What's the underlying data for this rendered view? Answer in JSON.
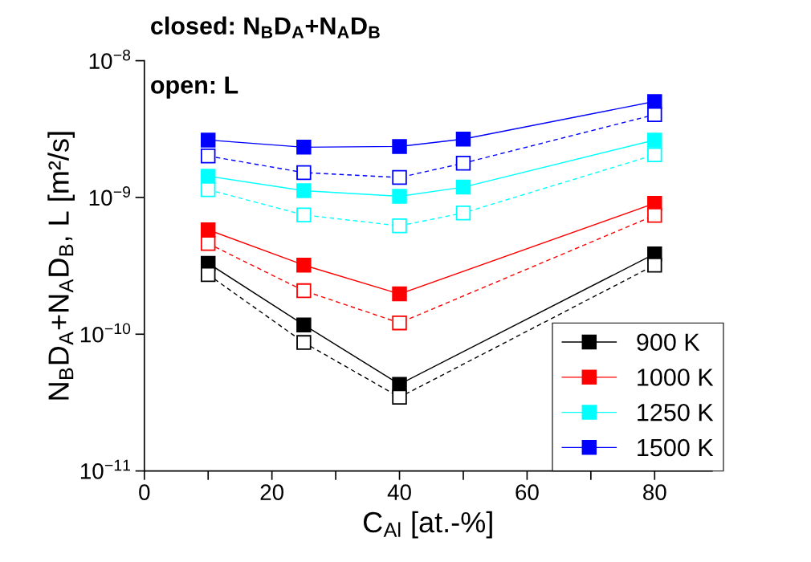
{
  "chart_data": {
    "type": "line",
    "xlabel": "C$_{Al}$ [at.-%]",
    "ylabel": "N$_{B}$D$_{A}$+N$_{A}$D$_{B}$, L [m²/s]",
    "annotations": [
      "closed: N$_{B}$D$_{A}$+N$_{A}$D$_{B}$",
      "open: L"
    ],
    "log": "y",
    "xlim": [
      0,
      89
    ],
    "ylim": [
      1e-11,
      1e-08
    ],
    "xticks": [
      0,
      {
        "value": 10,
        "label": null
      },
      20,
      {
        "value": 30,
        "label": null
      },
      40,
      {
        "value": 50,
        "label": null
      },
      60,
      {
        "value": 70,
        "label": null
      },
      80
    ],
    "yticks": [
      {
        "value": 1e-11,
        "label": "10$^{−11}$"
      },
      {
        "value": 1e-10,
        "label": "10$^{−10}$"
      },
      {
        "value": 1e-09,
        "label": "10$^{−9}$"
      },
      {
        "value": 1e-08,
        "label": "10$^{−8}$"
      }
    ],
    "grid": false,
    "legend": "bottom right",
    "marker": "square",
    "series": [
      {
        "name": "900 K",
        "color": "#000000",
        "line_style": "solid",
        "x": [
          10,
          25,
          40,
          80
        ],
        "values": [
          3.3e-10,
          1.17e-10,
          4.3e-11,
          3.87e-10
        ]
      },
      {
        "name": "1000 K",
        "color": "#ff0000",
        "line_style": "solid",
        "x": [
          10,
          25,
          40,
          80
        ],
        "values": [
          5.8e-10,
          3.2e-10,
          1.97e-10,
          9.06e-10
        ]
      },
      {
        "name": "1250 K",
        "color": "#00ffff",
        "line_style": "solid",
        "x": [
          10,
          25,
          40,
          50,
          80
        ],
        "values": [
          1.43e-09,
          1.12e-09,
          1.02e-09,
          1.19e-09,
          2.63e-09
        ]
      },
      {
        "name": "1500 K",
        "color": "#0000ff",
        "line_style": "solid",
        "x": [
          10,
          25,
          40,
          50,
          80
        ],
        "values": [
          2.63e-09,
          2.33e-09,
          2.36e-09,
          2.67e-09,
          5.03e-09
        ]
      },
      {
        "color": "#000000",
        "line_style": "dashed",
        "x": [
          10,
          25,
          40,
          80
        ],
        "values": [
          2.73e-10,
          8.7e-11,
          3.46e-11,
          3.2e-10
        ]
      },
      {
        "color": "#ff0000",
        "line_style": "dashed",
        "x": [
          10,
          25,
          40,
          80
        ],
        "values": [
          4.6e-10,
          2.08e-10,
          1.21e-10,
          7.4e-10
        ]
      },
      {
        "color": "#00ffff",
        "line_style": "dashed",
        "x": [
          10,
          25,
          40,
          50,
          80
        ],
        "values": [
          1.14e-09,
          7.45e-10,
          6.2e-10,
          7.7e-10,
          2.05e-09
        ]
      },
      {
        "color": "#0000ff",
        "line_style": "dashed",
        "x": [
          10,
          25,
          40,
          50,
          80
        ],
        "values": [
          2.01e-09,
          1.52e-09,
          1.4e-09,
          1.78e-09,
          4.03e-09
        ]
      }
    ]
  }
}
